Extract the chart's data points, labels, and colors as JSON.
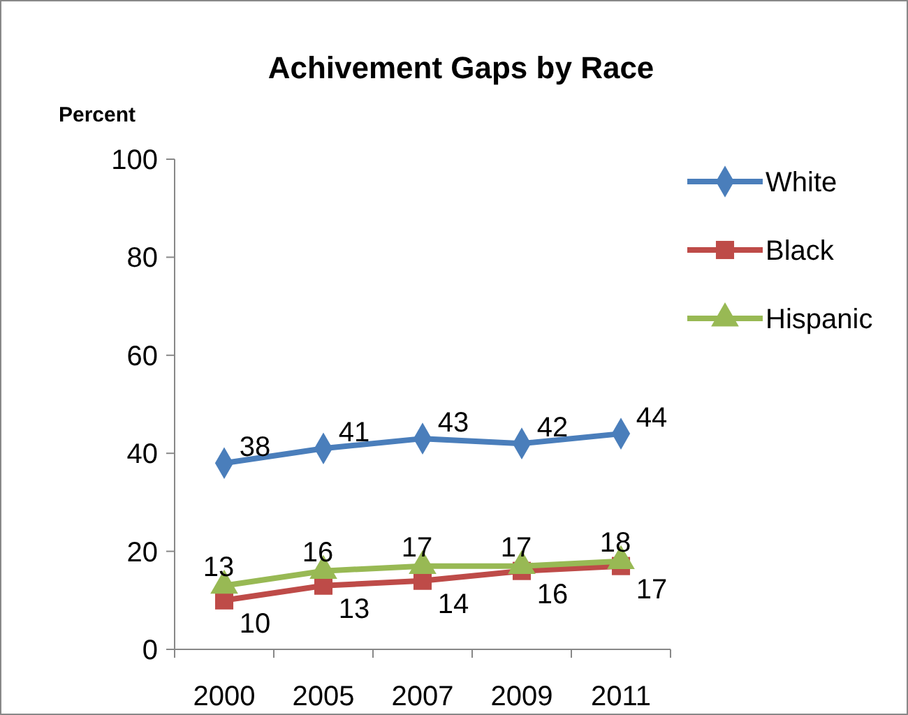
{
  "chart_data": {
    "type": "line",
    "title": "Achivement Gaps by Race",
    "ylabel": "Percent",
    "categories": [
      "2000",
      "2005",
      "2007",
      "2009",
      "2011"
    ],
    "series": [
      {
        "name": "White",
        "color": "#4a7ebb",
        "marker": "diamond",
        "values": [
          38,
          41,
          43,
          42,
          44
        ]
      },
      {
        "name": "Black",
        "color": "#be4b48",
        "marker": "square",
        "values": [
          10,
          13,
          14,
          16,
          17
        ]
      },
      {
        "name": "Hispanic",
        "color": "#98b954",
        "marker": "triangle",
        "values": [
          13,
          16,
          17,
          17,
          18
        ]
      }
    ],
    "ylim": [
      0,
      100
    ],
    "yticks": [
      0,
      20,
      40,
      60,
      80,
      100
    ],
    "grid": false,
    "legend": "right",
    "data_labels": true
  }
}
